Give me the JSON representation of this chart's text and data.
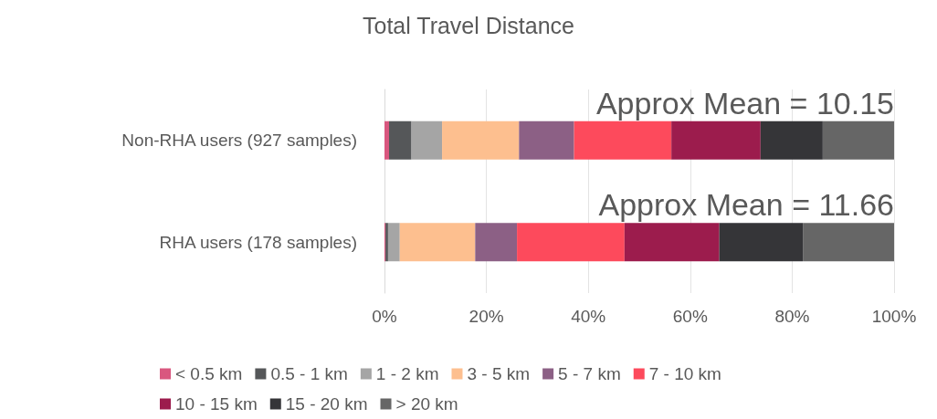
{
  "chart_data": {
    "type": "bar",
    "orientation": "horizontal",
    "stacked": true,
    "title": "Total Travel Distance",
    "categories": [
      "Non-RHA users (927 samples)",
      "RHA users (178 samples)"
    ],
    "series": [
      {
        "name": "< 0.5 km",
        "color": "#d9577f",
        "values": [
          0.9,
          0.2
        ]
      },
      {
        "name": "0.5 - 1 km",
        "color": "#555759",
        "values": [
          4.4,
          0.5
        ]
      },
      {
        "name": "1 - 2 km",
        "color": "#a5a5a5",
        "values": [
          6.0,
          2.3
        ]
      },
      {
        "name": "3 - 5 km",
        "color": "#fdbf8f",
        "values": [
          15.1,
          14.8
        ]
      },
      {
        "name": "5 - 7 km",
        "color": "#8c6085",
        "values": [
          10.8,
          8.2
        ]
      },
      {
        "name": "7 - 10 km",
        "color": "#fd4a5c",
        "values": [
          19.1,
          21.1
        ]
      },
      {
        "name": "10 - 15 km",
        "color": "#9c1c4d",
        "values": [
          17.5,
          18.6
        ]
      },
      {
        "name": "15 - 20 km",
        "color": "#353538",
        "values": [
          12.2,
          16.4
        ]
      },
      {
        "name": "> 20 km",
        "color": "#666666",
        "values": [
          14.0,
          17.9
        ]
      }
    ],
    "xlim": [
      0,
      100
    ],
    "xticks": [
      {
        "value": 0,
        "label": "0%"
      },
      {
        "value": 20,
        "label": "20%"
      },
      {
        "value": 40,
        "label": "40%"
      },
      {
        "value": 60,
        "label": "60%"
      },
      {
        "value": 80,
        "label": "80%"
      },
      {
        "value": 100,
        "label": "100%"
      }
    ],
    "grid": "x",
    "legend": "bottom",
    "annotations": [
      "Approx Mean = 10.15",
      "Approx Mean = 11.66"
    ]
  }
}
